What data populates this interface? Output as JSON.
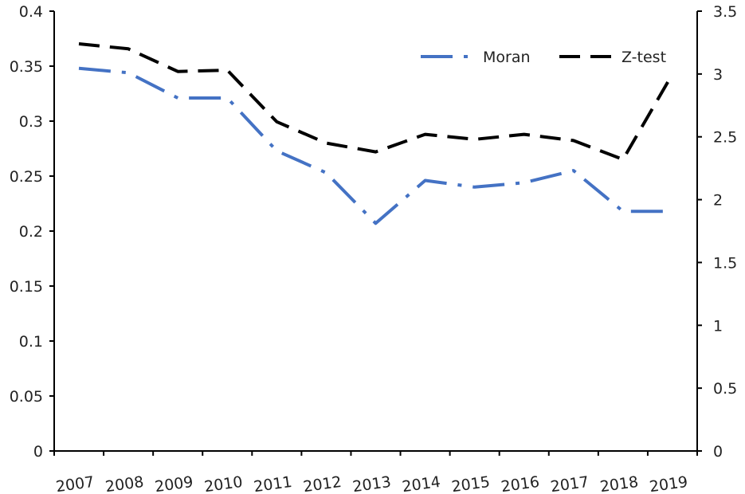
{
  "chart_data": {
    "type": "line",
    "title": "",
    "xlabel": "",
    "ylabel": "",
    "y2label": "",
    "categories": [
      "2007",
      "2008",
      "2009",
      "2010",
      "2011",
      "2012",
      "2013",
      "2014",
      "2015",
      "2016",
      "2017",
      "2018",
      "2019"
    ],
    "ylim": [
      0,
      0.4
    ],
    "y2lim": [
      0,
      3.5
    ],
    "yticks": [
      "0",
      "0.05",
      "0.1",
      "0.15",
      "0.2",
      "0.25",
      "0.3",
      "0.35",
      "0.4"
    ],
    "y2ticks": [
      "0",
      "0.5",
      "1",
      "1.5",
      "2",
      "2.5",
      "3",
      "3.5"
    ],
    "grid": false,
    "legend_position": "top-right",
    "series": [
      {
        "name": "Moran",
        "axis": "left",
        "color": "#4472C4",
        "style": "dash-dot",
        "values": [
          0.348,
          0.344,
          0.321,
          0.321,
          0.273,
          0.253,
          0.207,
          0.246,
          0.24,
          0.244,
          0.255,
          0.218,
          0.218
        ]
      },
      {
        "name": "Z-test",
        "axis": "right",
        "color": "#000000",
        "style": "dash",
        "values": [
          3.24,
          3.2,
          3.02,
          3.03,
          2.62,
          2.45,
          2.38,
          2.52,
          2.48,
          2.52,
          2.47,
          2.32,
          3.0
        ]
      }
    ]
  }
}
